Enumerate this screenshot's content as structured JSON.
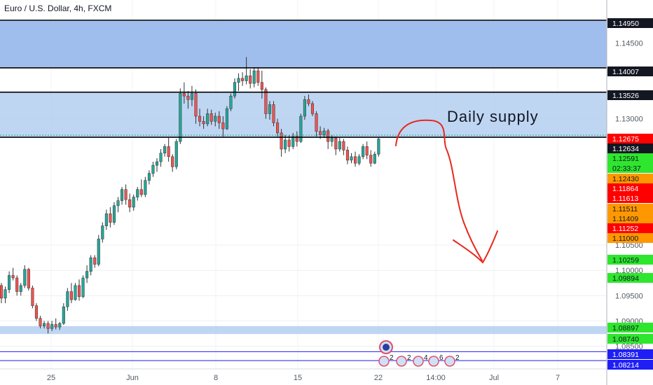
{
  "header": {
    "title": "Euro / U.S. Dollar, 4h, FXCM"
  },
  "colors": {
    "up": "#26a69a",
    "down": "#ef5350",
    "wick": "#333333",
    "zone_fill": "#a4c4ee",
    "zone_strong": "#8fb3ea",
    "label_black": "#131722",
    "label_red": "#ff0000",
    "label_orange": "#ff9800",
    "label_green": "#2ee62e",
    "label_blue": "#1f1ff5",
    "annotation": "#e8281e"
  },
  "chart_data": {
    "type": "candlestick",
    "symbol": "EURUSD",
    "timeframe": "4h",
    "source": "FXCM",
    "ylim": [
      1.0805,
      1.1535
    ],
    "y_ticks": [
      "1.14500",
      "1.13000",
      "1.10500",
      "1.10000",
      "1.09500",
      "1.09000",
      "1.08500"
    ],
    "y_tick_values": [
      1.145,
      1.13,
      1.105,
      1.1,
      1.095,
      1.09,
      1.085
    ],
    "x_ticks": [
      "25",
      "Jun",
      "8",
      "15",
      "22",
      "14:00",
      "Jul",
      "7"
    ],
    "annotation_text": "Daily supply",
    "zones": [
      {
        "name": "upper supply",
        "from": 1.14007,
        "to": 1.1495
      },
      {
        "name": "daily supply",
        "from": 1.12634,
        "to": 1.13526
      },
      {
        "name": "demand",
        "from": 1.0874,
        "to": 1.08897
      }
    ],
    "horizontal_lines": [
      1.1495,
      1.14007,
      1.13526,
      1.12634,
      1.08391,
      1.08214
    ],
    "price_labels": [
      {
        "text": "1.14950",
        "value": 1.1495,
        "color": "black"
      },
      {
        "text": "1.14007",
        "value": 1.14007,
        "color": "black"
      },
      {
        "text": "1.13526",
        "value": 1.13526,
        "color": "black"
      },
      {
        "text": "1.12675",
        "value": 1.12675,
        "color": "red"
      },
      {
        "text": "1.12634",
        "value": 1.12634,
        "color": "black"
      },
      {
        "text": "1.12591",
        "value": 1.12591,
        "color": "green"
      },
      {
        "text": "02:33:37",
        "value": 1.1252,
        "color": "green"
      },
      {
        "text": "1.12430",
        "value": 1.1243,
        "color": "orange"
      },
      {
        "text": "1.11864",
        "value": 1.11864,
        "color": "red"
      },
      {
        "text": "1.11613",
        "value": 1.11613,
        "color": "red"
      },
      {
        "text": "1.11511",
        "value": 1.11511,
        "color": "orange"
      },
      {
        "text": "1.11409",
        "value": 1.11409,
        "color": "orange"
      },
      {
        "text": "1.11252",
        "value": 1.11252,
        "color": "red"
      },
      {
        "text": "1.11000",
        "value": 1.11,
        "color": "orange"
      },
      {
        "text": "1.10259",
        "value": 1.10259,
        "color": "green"
      },
      {
        "text": "1.09894",
        "value": 1.09894,
        "color": "green"
      },
      {
        "text": "1.08897",
        "value": 1.08897,
        "color": "green"
      },
      {
        "text": "1.08740",
        "value": 1.0874,
        "color": "green"
      },
      {
        "text": "1.08391",
        "value": 1.08391,
        "color": "blue"
      },
      {
        "text": "1.08214",
        "value": 1.08214,
        "color": "blue"
      }
    ],
    "event_counts": [
      "2",
      "2",
      "4",
      "6",
      "2"
    ],
    "candles": [
      [
        1.097,
        1.0975,
        1.0935,
        1.0945
      ],
      [
        1.0945,
        1.0968,
        1.0935,
        1.0962
      ],
      [
        1.0962,
        1.0998,
        1.0955,
        1.099
      ],
      [
        1.099,
        1.1005,
        1.098,
        1.0985
      ],
      [
        1.0985,
        1.099,
        1.095,
        1.0958
      ],
      [
        1.0958,
        1.0975,
        1.095,
        1.097
      ],
      [
        1.097,
        1.101,
        1.0965,
        1.1002
      ],
      [
        1.1002,
        1.1005,
        1.096,
        1.0965
      ],
      [
        1.0965,
        1.097,
        1.0925,
        1.093
      ],
      [
        1.093,
        1.0935,
        1.09,
        1.0905
      ],
      [
        1.0905,
        1.091,
        1.0885,
        1.089
      ],
      [
        1.089,
        1.09,
        1.0885,
        1.0895
      ],
      [
        1.0895,
        1.09,
        1.0875,
        1.0885
      ],
      [
        1.0885,
        1.09,
        1.088,
        1.0893
      ],
      [
        1.0893,
        1.0905,
        1.0883,
        1.0888
      ],
      [
        1.0888,
        1.0898,
        1.0882,
        1.0895
      ],
      [
        1.0895,
        1.0935,
        1.0892,
        1.0928
      ],
      [
        1.0928,
        1.0965,
        1.092,
        1.0958
      ],
      [
        1.0958,
        1.0975,
        1.0935,
        1.0942
      ],
      [
        1.0942,
        1.0975,
        1.094,
        1.097
      ],
      [
        1.097,
        1.0982,
        1.094,
        1.0948
      ],
      [
        1.0948,
        1.099,
        1.0945,
        1.0985
      ],
      [
        1.0985,
        1.101,
        1.0975,
        1.0998
      ],
      [
        1.0998,
        1.103,
        1.099,
        1.1025
      ],
      [
        1.1025,
        1.103,
        1.1005,
        1.1012
      ],
      [
        1.1012,
        1.107,
        1.1008,
        1.1062
      ],
      [
        1.1062,
        1.1095,
        1.1055,
        1.1088
      ],
      [
        1.1088,
        1.112,
        1.108,
        1.1112
      ],
      [
        1.1112,
        1.1125,
        1.1085,
        1.1095
      ],
      [
        1.1095,
        1.1135,
        1.109,
        1.1128
      ],
      [
        1.1128,
        1.1145,
        1.1115,
        1.1138
      ],
      [
        1.1138,
        1.1165,
        1.113,
        1.116
      ],
      [
        1.116,
        1.117,
        1.113,
        1.114
      ],
      [
        1.114,
        1.1152,
        1.1115,
        1.1125
      ],
      [
        1.1125,
        1.115,
        1.1118,
        1.1145
      ],
      [
        1.1145,
        1.1165,
        1.1138,
        1.116
      ],
      [
        1.116,
        1.118,
        1.1145,
        1.115
      ],
      [
        1.115,
        1.1185,
        1.1145,
        1.1178
      ],
      [
        1.1178,
        1.1198,
        1.117,
        1.1192
      ],
      [
        1.1192,
        1.1215,
        1.1185,
        1.1208
      ],
      [
        1.1208,
        1.1222,
        1.1195,
        1.1215
      ],
      [
        1.1215,
        1.124,
        1.1205,
        1.1232
      ],
      [
        1.1232,
        1.125,
        1.1225,
        1.1245
      ],
      [
        1.1245,
        1.1262,
        1.1215,
        1.1225
      ],
      [
        1.1225,
        1.123,
        1.1195,
        1.1205
      ],
      [
        1.1205,
        1.126,
        1.12,
        1.1255
      ],
      [
        1.1255,
        1.136,
        1.125,
        1.135
      ],
      [
        1.135,
        1.1372,
        1.133,
        1.1345
      ],
      [
        1.1345,
        1.1355,
        1.132,
        1.1338
      ],
      [
        1.1338,
        1.1365,
        1.1325,
        1.135
      ],
      [
        1.135,
        1.1358,
        1.129,
        1.1305
      ],
      [
        1.1305,
        1.132,
        1.1285,
        1.1295
      ],
      [
        1.1295,
        1.1305,
        1.128,
        1.129
      ],
      [
        1.129,
        1.132,
        1.1285,
        1.131
      ],
      [
        1.131,
        1.1318,
        1.1288,
        1.1295
      ],
      [
        1.1295,
        1.1312,
        1.1285,
        1.1305
      ],
      [
        1.1305,
        1.1315,
        1.128,
        1.1292
      ],
      [
        1.1292,
        1.1305,
        1.1265,
        1.128
      ],
      [
        1.128,
        1.1325,
        1.1278,
        1.132
      ],
      [
        1.132,
        1.135,
        1.1315,
        1.1345
      ],
      [
        1.1345,
        1.138,
        1.134,
        1.1372
      ],
      [
        1.1372,
        1.139,
        1.1355,
        1.138
      ],
      [
        1.138,
        1.1392,
        1.1365,
        1.1375
      ],
      [
        1.1375,
        1.1422,
        1.1368,
        1.1385
      ],
      [
        1.1385,
        1.1398,
        1.136,
        1.137
      ],
      [
        1.137,
        1.1402,
        1.1362,
        1.1395
      ],
      [
        1.1395,
        1.14,
        1.1365,
        1.1372
      ],
      [
        1.1372,
        1.1395,
        1.134,
        1.1358
      ],
      [
        1.1358,
        1.1362,
        1.13,
        1.131
      ],
      [
        1.131,
        1.1335,
        1.1298,
        1.1328
      ],
      [
        1.1328,
        1.1335,
        1.1285,
        1.1292
      ],
      [
        1.1292,
        1.13,
        1.1265,
        1.1272
      ],
      [
        1.1272,
        1.128,
        1.1225,
        1.124
      ],
      [
        1.124,
        1.1268,
        1.1232,
        1.1258
      ],
      [
        1.1258,
        1.1268,
        1.1235,
        1.1245
      ],
      [
        1.1245,
        1.1272,
        1.124,
        1.1265
      ],
      [
        1.1265,
        1.1275,
        1.1245,
        1.1255
      ],
      [
        1.1255,
        1.131,
        1.1252,
        1.1305
      ],
      [
        1.1305,
        1.1345,
        1.1298,
        1.1338
      ],
      [
        1.1338,
        1.1348,
        1.1325,
        1.133
      ],
      [
        1.133,
        1.1335,
        1.1305,
        1.131
      ],
      [
        1.131,
        1.1315,
        1.1265,
        1.1275
      ],
      [
        1.1275,
        1.1285,
        1.126,
        1.1268
      ],
      [
        1.1268,
        1.1282,
        1.1262,
        1.1276
      ],
      [
        1.1276,
        1.128,
        1.124,
        1.1255
      ],
      [
        1.1255,
        1.1268,
        1.1245,
        1.1262
      ],
      [
        1.1262,
        1.1265,
        1.1228,
        1.124
      ],
      [
        1.124,
        1.1262,
        1.1235,
        1.1255
      ],
      [
        1.1255,
        1.126,
        1.1228,
        1.1238
      ],
      [
        1.1238,
        1.1245,
        1.121,
        1.1218
      ],
      [
        1.1218,
        1.1232,
        1.1212,
        1.1225
      ],
      [
        1.1225,
        1.1235,
        1.1205,
        1.1212
      ],
      [
        1.1212,
        1.123,
        1.1208,
        1.1225
      ],
      [
        1.1225,
        1.125,
        1.122,
        1.1245
      ],
      [
        1.1245,
        1.1255,
        1.122,
        1.1228
      ],
      [
        1.1228,
        1.1238,
        1.1205,
        1.1212
      ],
      [
        1.1212,
        1.1235,
        1.121,
        1.123
      ],
      [
        1.123,
        1.1262,
        1.1225,
        1.126
      ]
    ]
  }
}
